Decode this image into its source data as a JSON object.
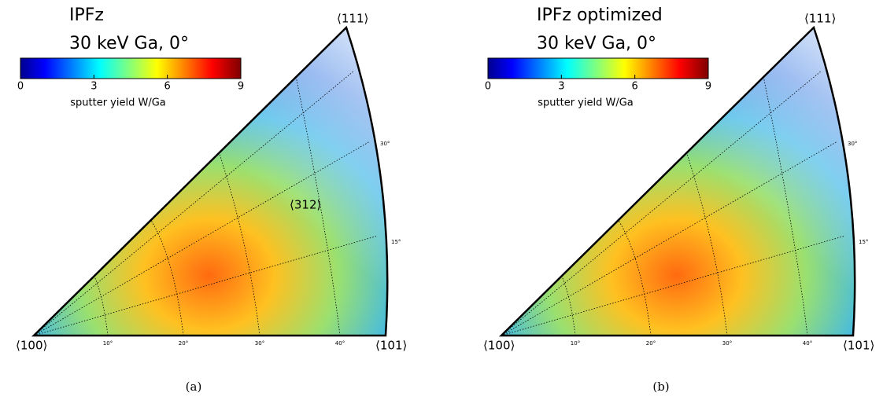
{
  "panels": [
    {
      "title": "IPFz",
      "subtitle": "30 keV Ga, 0°",
      "colorbar": {
        "lim": [
          0,
          9
        ],
        "ticks": [
          0,
          3,
          6,
          9
        ],
        "label": "sputter yield W/Ga"
      },
      "corners": {
        "left": "⟨100⟩",
        "right": "⟨101⟩",
        "top": "⟨111⟩"
      },
      "angle_labels_bottom": [
        "10°",
        "20°",
        "30°",
        "40°"
      ],
      "angle_labels_right": [
        "30°",
        "15°"
      ],
      "annotation": "⟨312⟩",
      "caption": "(a)"
    },
    {
      "title": "IPFz optimized",
      "subtitle": "30 keV Ga, 0°",
      "colorbar": {
        "lim": [
          0,
          9
        ],
        "ticks": [
          0,
          3,
          6,
          9
        ],
        "label": "sputter yield W/Ga"
      },
      "corners": {
        "left": "⟨100⟩",
        "right": "⟨101⟩",
        "top": "⟨111⟩"
      },
      "angle_labels_bottom": [
        "10°",
        "20°",
        "30°",
        "40°"
      ],
      "angle_labels_right": [
        "30°",
        "15°"
      ],
      "caption": "(b)"
    }
  ]
}
